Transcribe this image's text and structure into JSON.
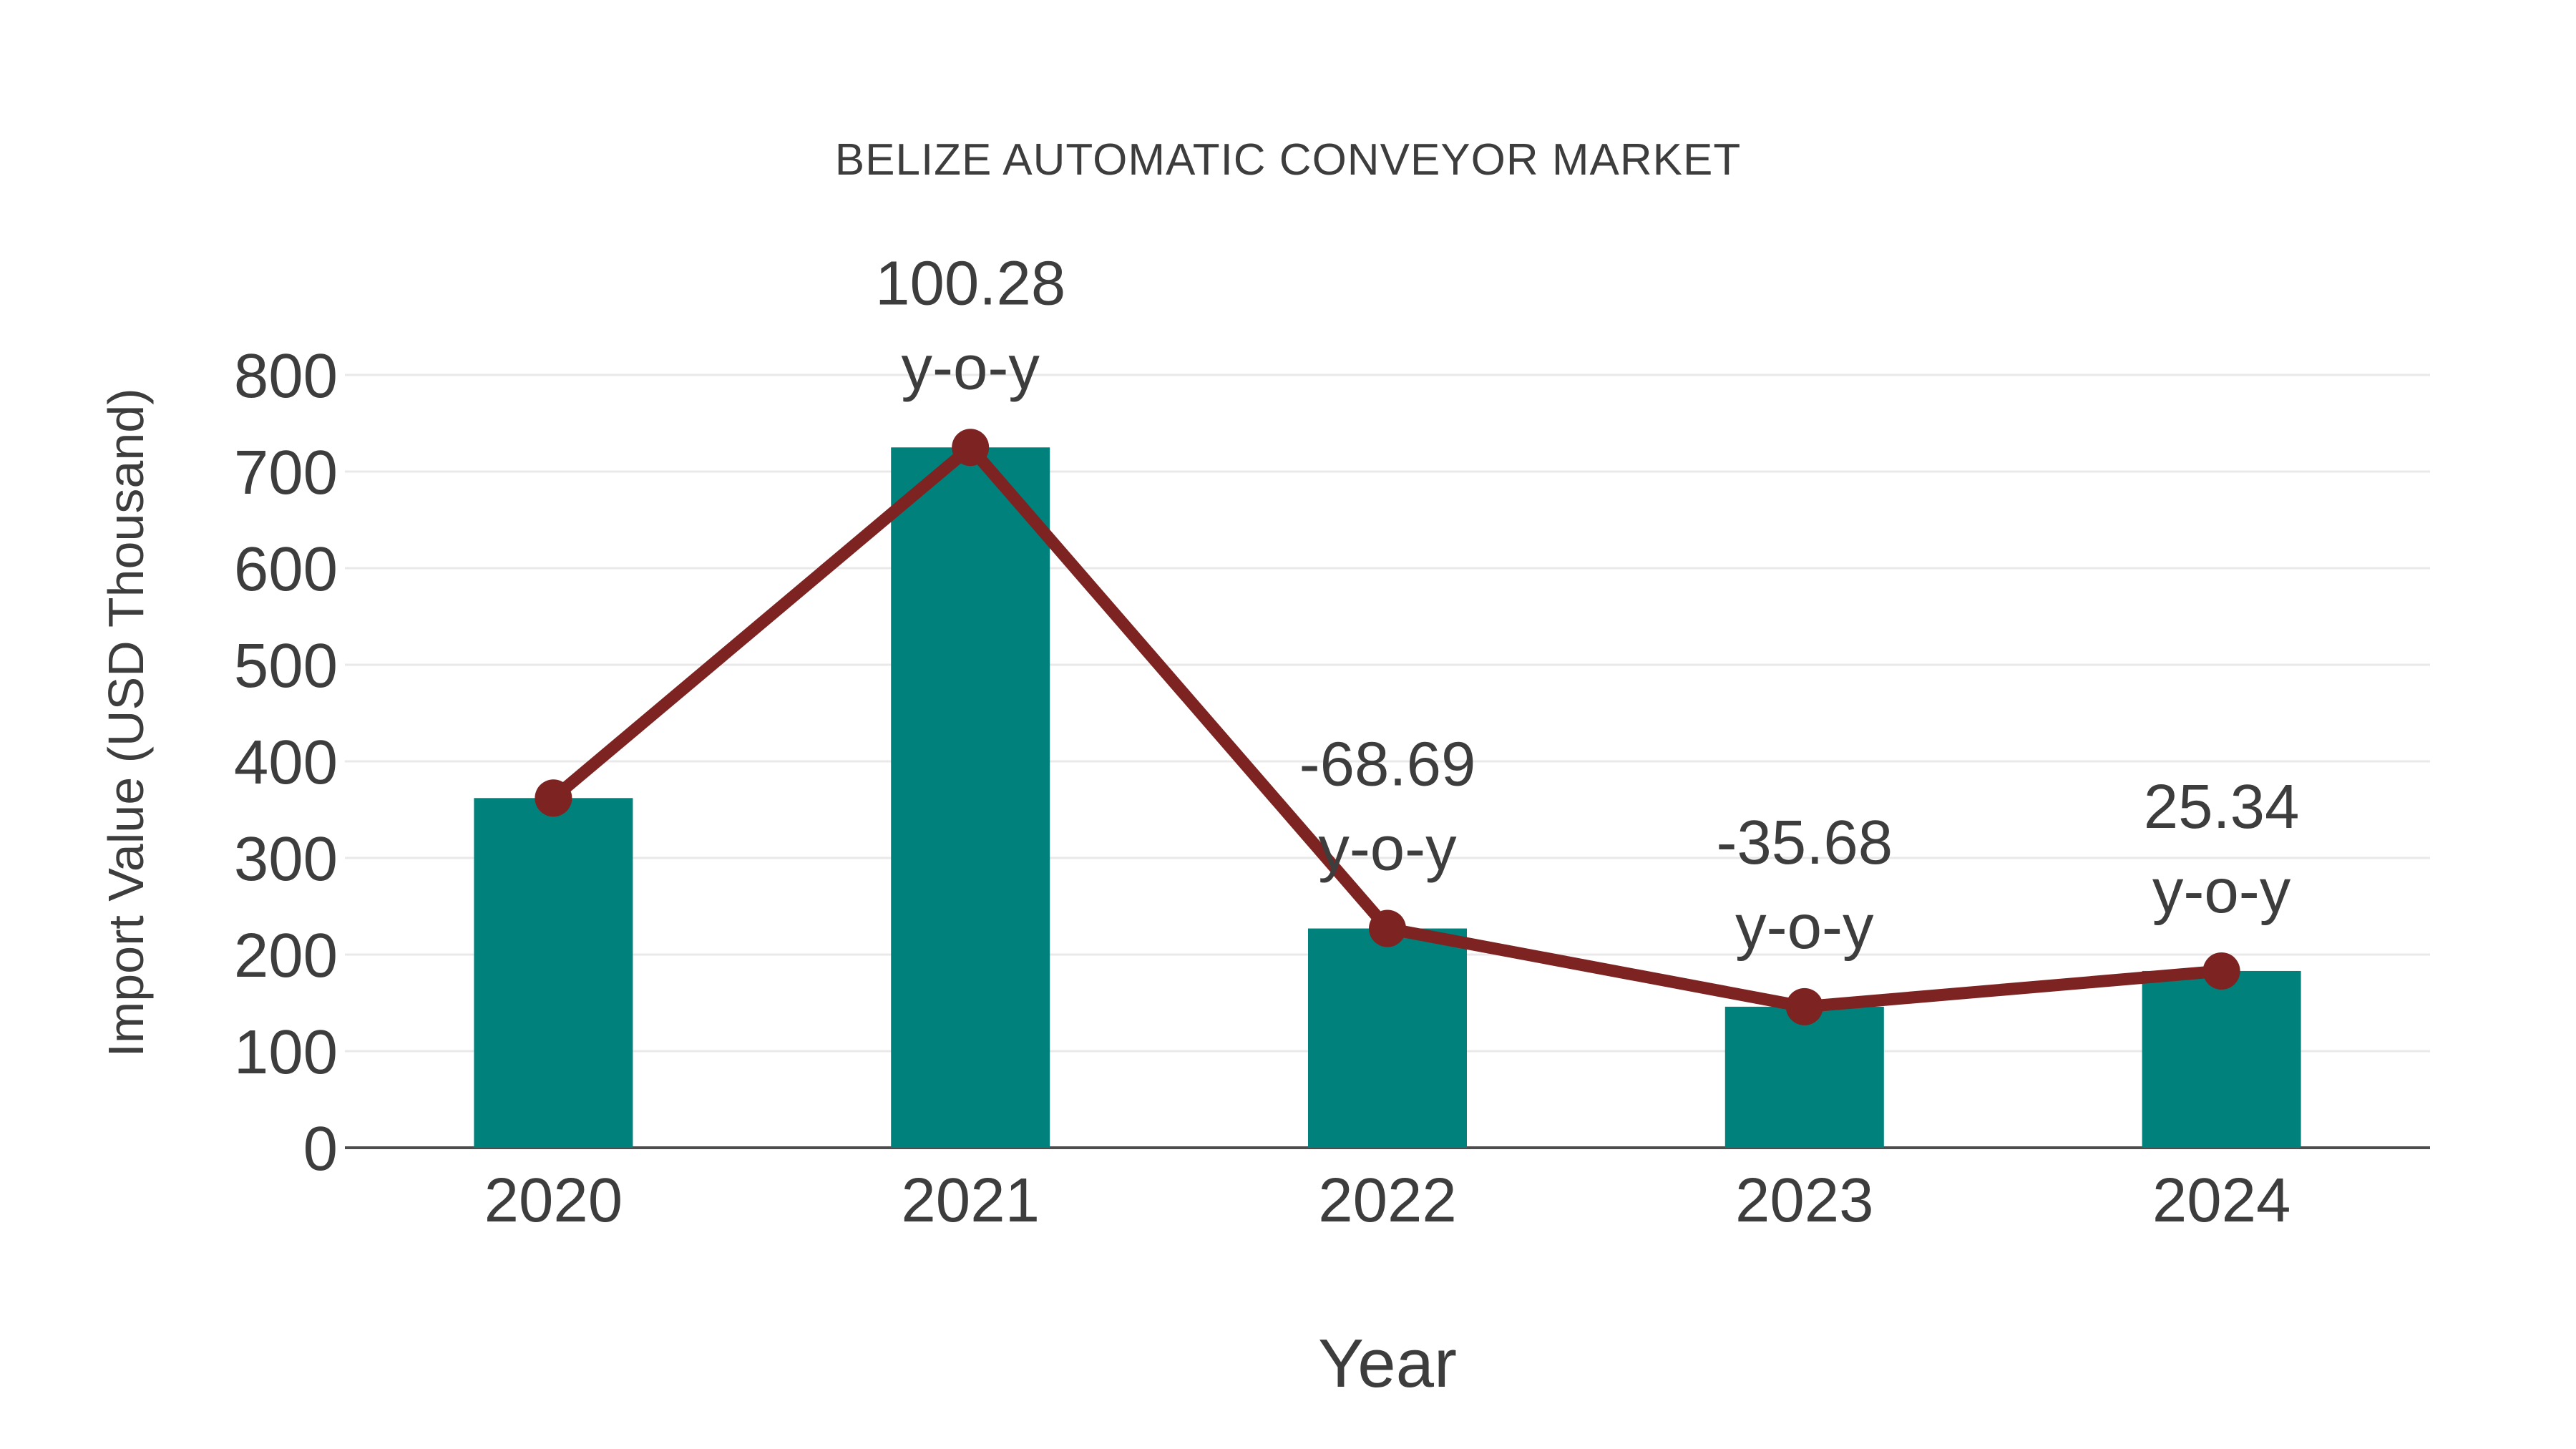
{
  "chart_data": {
    "type": "bar",
    "overlay": "line",
    "title": "BELIZE AUTOMATIC CONVEYOR MARKET",
    "xlabel": "Year",
    "ylabel": "Import Value (USD Thousand)",
    "categories": [
      "2020",
      "2021",
      "2022",
      "2023",
      "2024"
    ],
    "series": [
      {
        "name": "import-value-bars",
        "type": "bar",
        "values": [
          362,
          725,
          227,
          146,
          183
        ]
      },
      {
        "name": "yoy-trend-line",
        "type": "line",
        "values": [
          362,
          725,
          227,
          146,
          183
        ]
      }
    ],
    "yoy_percent_change": [
      null,
      100.28,
      -68.69,
      -35.68,
      25.34
    ],
    "annotations": [
      {
        "category": "2021",
        "value": "100.28",
        "suffix": "y-o-y"
      },
      {
        "category": "2022",
        "value": "-68.69",
        "suffix": "y-o-y"
      },
      {
        "category": "2023",
        "value": "-35.68",
        "suffix": "y-o-y"
      },
      {
        "category": "2024",
        "value": "25.34",
        "suffix": "y-o-y"
      }
    ],
    "ylim": [
      0,
      800
    ],
    "yticks": [
      0,
      100,
      200,
      300,
      400,
      500,
      600,
      700,
      800
    ],
    "grid": true,
    "legend": false,
    "colors": {
      "bar": "#00817c",
      "line": "#7d2322",
      "marker": "#7d2322",
      "text": "#3d3d3d",
      "grid": "#e9e9e9",
      "axis": "#4d4d4d",
      "background": "#ffffff"
    }
  }
}
